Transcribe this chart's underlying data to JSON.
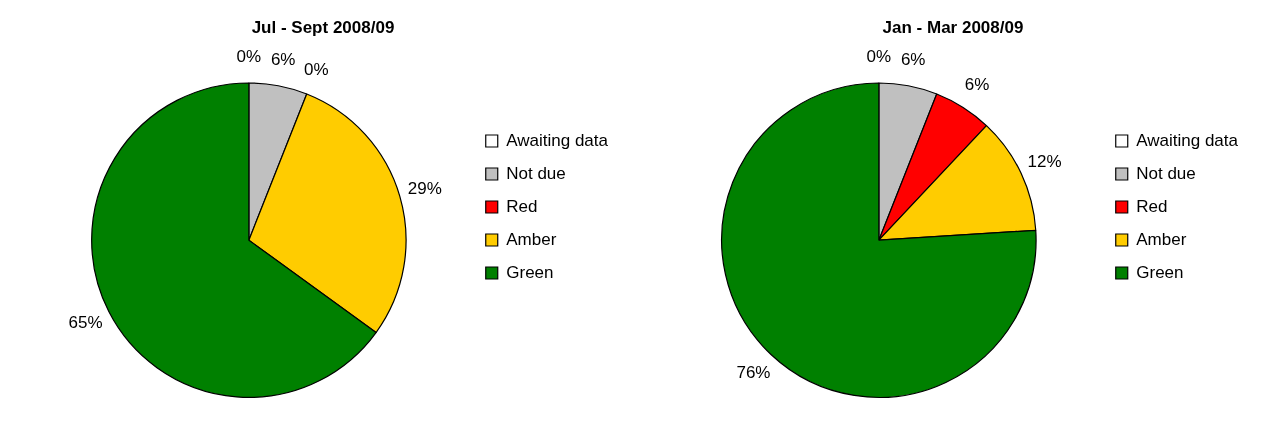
{
  "chart_data": [
    {
      "type": "pie",
      "title": "Jul - Sept 2008/09",
      "categories": [
        "Awaiting data",
        "Not due",
        "Red",
        "Amber",
        "Green"
      ],
      "values": [
        0,
        6,
        0,
        29,
        65
      ],
      "value_labels": [
        "0%",
        "6%",
        "0%",
        "29%",
        "65%"
      ],
      "colors": [
        "#ffffff",
        "#c0c0c0",
        "#ff0000",
        "#ffcc00",
        "#008000"
      ],
      "legend": "right"
    },
    {
      "type": "pie",
      "title": "Jan - Mar 2008/09",
      "categories": [
        "Awaiting data",
        "Not due",
        "Red",
        "Amber",
        "Green"
      ],
      "values": [
        0,
        6,
        6,
        12,
        76
      ],
      "value_labels": [
        "0%",
        "6%",
        "6%",
        "12%",
        "76%"
      ],
      "colors": [
        "#ffffff",
        "#c0c0c0",
        "#ff0000",
        "#ffcc00",
        "#008000"
      ],
      "legend": "right"
    }
  ]
}
